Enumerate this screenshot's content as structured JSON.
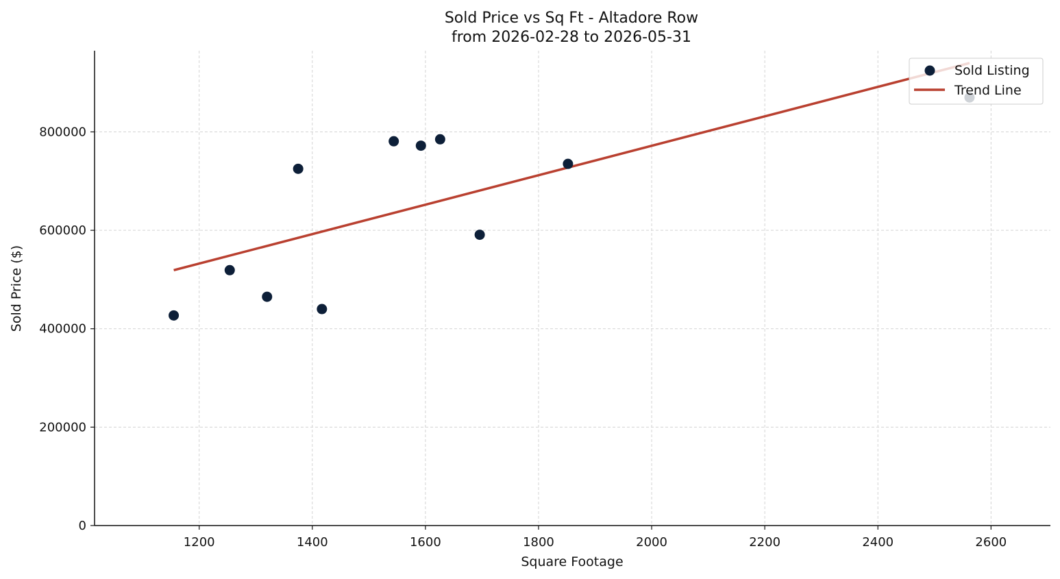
{
  "chart_data": {
    "type": "scatter",
    "title_line1": "Sold Price vs Sq Ft - Altadore Row",
    "title_line2": "from 2026-02-28 to 2026-05-31",
    "xlabel": "Square Footage",
    "ylabel": "Sold Price ($)",
    "xlim": [
      1015,
      2705
    ],
    "ylim": [
      0,
      965000
    ],
    "xticks": [
      1200,
      1400,
      1600,
      1800,
      2000,
      2200,
      2400,
      2600
    ],
    "yticks": [
      0,
      200000,
      400000,
      600000,
      800000
    ],
    "grid": true,
    "legend_position": "top-right",
    "series": [
      {
        "name": "Sold Listing",
        "kind": "scatter",
        "color": "#0d1f38",
        "points": [
          {
            "x": 1155,
            "y": 427000
          },
          {
            "x": 1254,
            "y": 519000
          },
          {
            "x": 1320,
            "y": 465000
          },
          {
            "x": 1375,
            "y": 725000
          },
          {
            "x": 1417,
            "y": 440000
          },
          {
            "x": 1544,
            "y": 781000
          },
          {
            "x": 1592,
            "y": 772000
          },
          {
            "x": 1626,
            "y": 785000
          },
          {
            "x": 1696,
            "y": 591000
          },
          {
            "x": 1852,
            "y": 735000
          },
          {
            "x": 2562,
            "y": 870000
          }
        ]
      },
      {
        "name": "Trend Line",
        "kind": "line",
        "color": "#b94030",
        "points": [
          {
            "x": 1155,
            "y": 519000
          },
          {
            "x": 2562,
            "y": 940000
          }
        ]
      }
    ]
  }
}
